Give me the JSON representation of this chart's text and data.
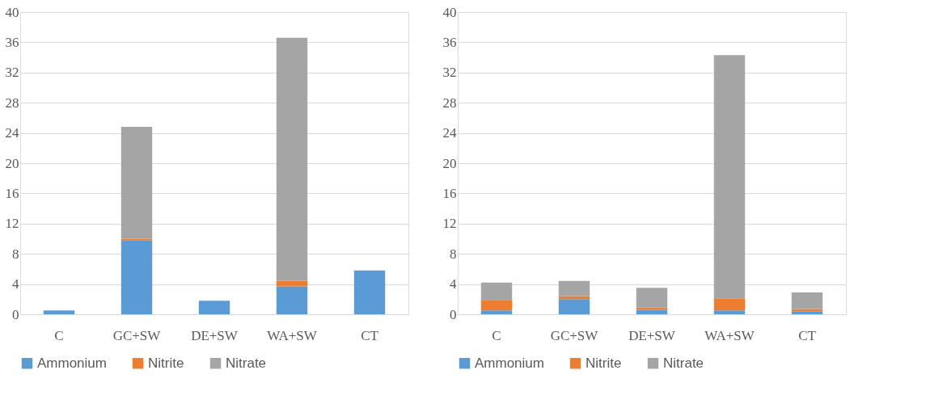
{
  "chart_data": [
    {
      "type": "bar",
      "stacked": true,
      "categories": [
        "C",
        "GC+SW",
        "DE+SW",
        "WA+SW",
        "CT"
      ],
      "series": [
        {
          "name": "Ammonium",
          "color": "#5b9bd5",
          "values": [
            0.5,
            9.8,
            1.8,
            3.7,
            5.8
          ]
        },
        {
          "name": "Nitrite",
          "color": "#ed7d31",
          "values": [
            0,
            0.2,
            0,
            0.7,
            0
          ]
        },
        {
          "name": "Nitrate",
          "color": "#a5a5a5",
          "values": [
            0,
            14.8,
            0,
            32.2,
            0
          ]
        }
      ],
      "ylim": [
        0,
        40
      ],
      "yticks": [
        0,
        4,
        8,
        12,
        16,
        20,
        24,
        28,
        32,
        36,
        40
      ],
      "grid": "y",
      "legend": "bottom"
    },
    {
      "type": "bar",
      "stacked": true,
      "categories": [
        "C",
        "GC+SW",
        "DE+SW",
        "WA+SW",
        "CT"
      ],
      "series": [
        {
          "name": "Ammonium",
          "color": "#5b9bd5",
          "values": [
            0.5,
            2.0,
            0.6,
            0.5,
            0.4
          ]
        },
        {
          "name": "Nitrite",
          "color": "#ed7d31",
          "values": [
            1.4,
            0.4,
            0.3,
            1.6,
            0.3
          ]
        },
        {
          "name": "Nitrate",
          "color": "#a5a5a5",
          "values": [
            2.3,
            2.0,
            2.6,
            32.2,
            2.2
          ]
        }
      ],
      "ylim": [
        0,
        40
      ],
      "yticks": [
        0,
        4,
        8,
        12,
        16,
        20,
        24,
        28,
        32,
        36,
        40
      ],
      "grid": "y",
      "legend": "bottom"
    }
  ]
}
